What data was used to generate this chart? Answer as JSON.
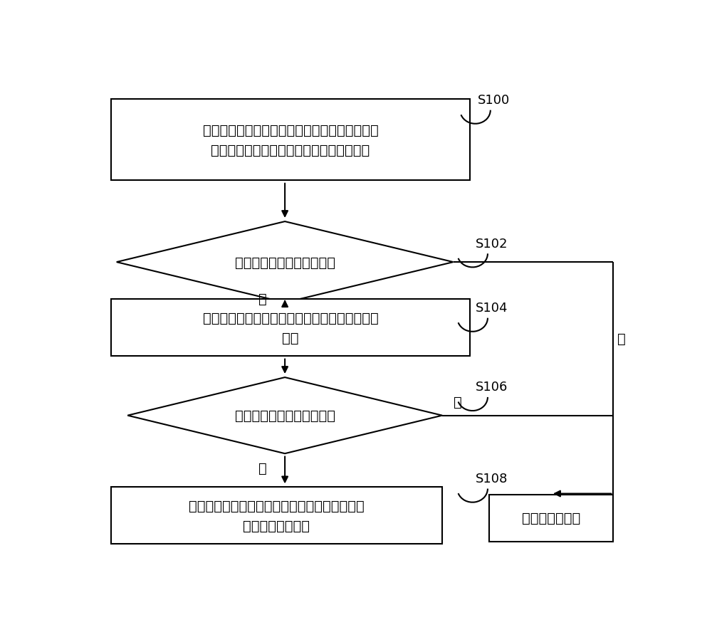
{
  "bg_color": "#ffffff",
  "border_color": "#000000",
  "text_color": "#000000",
  "arrow_color": "#000000",
  "font_size": 14,
  "label_font_size": 13,
  "box1_text": "获取计时器传输的当前时间和发动机上次关闭时\n间，根据关闭时间和当前时间确定停机时长",
  "diamond1_text": "停机时长是否大于预设时长",
  "box2_text": "获取压力监测器监测得到的汽车内蓄电池的当前\n电压",
  "diamond2_text": "当前电压是否大于电压阈值",
  "box3_text": "控制循环回路的循环通道连通，并控制蓄电池对\n电机和加热器供电",
  "box4_text": "正常启动发动机",
  "yes_label": "是",
  "no_label": "否",
  "labels": [
    "S100",
    "S102",
    "S104",
    "S106",
    "S108"
  ],
  "line_width": 1.5
}
